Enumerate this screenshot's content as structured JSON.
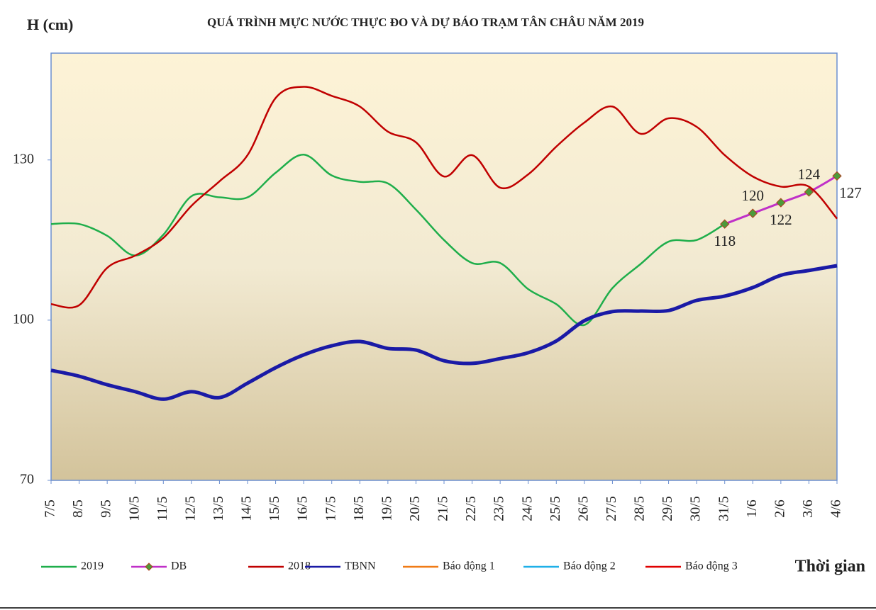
{
  "chart_data": {
    "type": "line",
    "title": "QUÁ TRÌNH MỰC NƯỚC THỰC ĐO VÀ DỰ BÁO TRẠM TÂN CHÂU NĂM 2019",
    "y_label": "H (cm)",
    "x_label": "Thời gian",
    "categories": [
      "7/5",
      "8/5",
      "9/5",
      "10/5",
      "11/5",
      "12/5",
      "13/5",
      "14/5",
      "15/5",
      "16/5",
      "17/5",
      "18/5",
      "19/5",
      "20/5",
      "21/5",
      "22/5",
      "23/5",
      "24/5",
      "25/5",
      "26/5",
      "27/5",
      "28/5",
      "29/5",
      "30/5",
      "31/5",
      "1/6",
      "2/6",
      "3/6",
      "4/6"
    ],
    "ylim": [
      70,
      150
    ],
    "yticks": [
      70,
      100,
      130
    ],
    "series": [
      {
        "name": "2019",
        "color": "#1fae4b",
        "values": [
          118,
          118,
          115.8,
          112.1,
          116,
          123.2,
          123,
          123,
          127.6,
          131,
          127.1,
          125.9,
          125.6,
          120.7,
          115,
          110.7,
          110.7,
          105.8,
          103,
          99.1,
          106,
          110.5,
          114.7,
          115,
          118,
          null,
          null,
          null,
          null
        ]
      },
      {
        "name": "DB",
        "color": "#c030c8",
        "marker_color": "#4c9a3a",
        "values": [
          null,
          null,
          null,
          null,
          null,
          null,
          null,
          null,
          null,
          null,
          null,
          null,
          null,
          null,
          null,
          null,
          null,
          null,
          null,
          null,
          null,
          null,
          null,
          null,
          118,
          120,
          122,
          124,
          127
        ],
        "value_labels_shown": true
      },
      {
        "name": "2018",
        "color": "#c00000",
        "values": [
          103,
          102.8,
          109.8,
          112.1,
          115.4,
          121.4,
          126,
          130.9,
          141.6,
          143.7,
          142,
          140,
          135.3,
          133.3,
          126.9,
          130.9,
          124.8,
          127.3,
          132.5,
          137,
          140,
          134.9,
          137.8,
          136.2,
          130.9,
          126.9,
          125,
          125,
          119
        ]
      },
      {
        "name": "TBNN",
        "color": "#1a1aa6",
        "width": 5,
        "values": [
          90.6,
          89.5,
          87.9,
          86.6,
          85.2,
          86.6,
          85.5,
          88.2,
          91.1,
          93.5,
          95.2,
          96,
          94.7,
          94.4,
          92.4,
          91.9,
          92.8,
          93.9,
          96.1,
          99.9,
          101.6,
          101.7,
          101.8,
          103.7,
          104.5,
          106.1,
          108.4,
          109.3,
          110.2
        ]
      },
      {
        "name": "Báo động 1",
        "color": "#f07b16",
        "values": [
          null,
          null,
          null,
          null,
          null,
          null,
          null,
          null,
          null,
          null,
          null,
          null,
          null,
          null,
          null,
          null,
          null,
          null,
          null,
          null,
          null,
          null,
          null,
          null,
          null,
          null,
          null,
          null,
          null
        ]
      },
      {
        "name": "Báo động 2",
        "color": "#1fb0e8",
        "values": [
          null,
          null,
          null,
          null,
          null,
          null,
          null,
          null,
          null,
          null,
          null,
          null,
          null,
          null,
          null,
          null,
          null,
          null,
          null,
          null,
          null,
          null,
          null,
          null,
          null,
          null,
          null,
          null,
          null
        ]
      },
      {
        "name": "Báo động 3",
        "color": "#e00000",
        "values": [
          null,
          null,
          null,
          null,
          null,
          null,
          null,
          null,
          null,
          null,
          null,
          null,
          null,
          null,
          null,
          null,
          null,
          null,
          null,
          null,
          null,
          null,
          null,
          null,
          null,
          null,
          null,
          null,
          null
        ]
      }
    ]
  }
}
